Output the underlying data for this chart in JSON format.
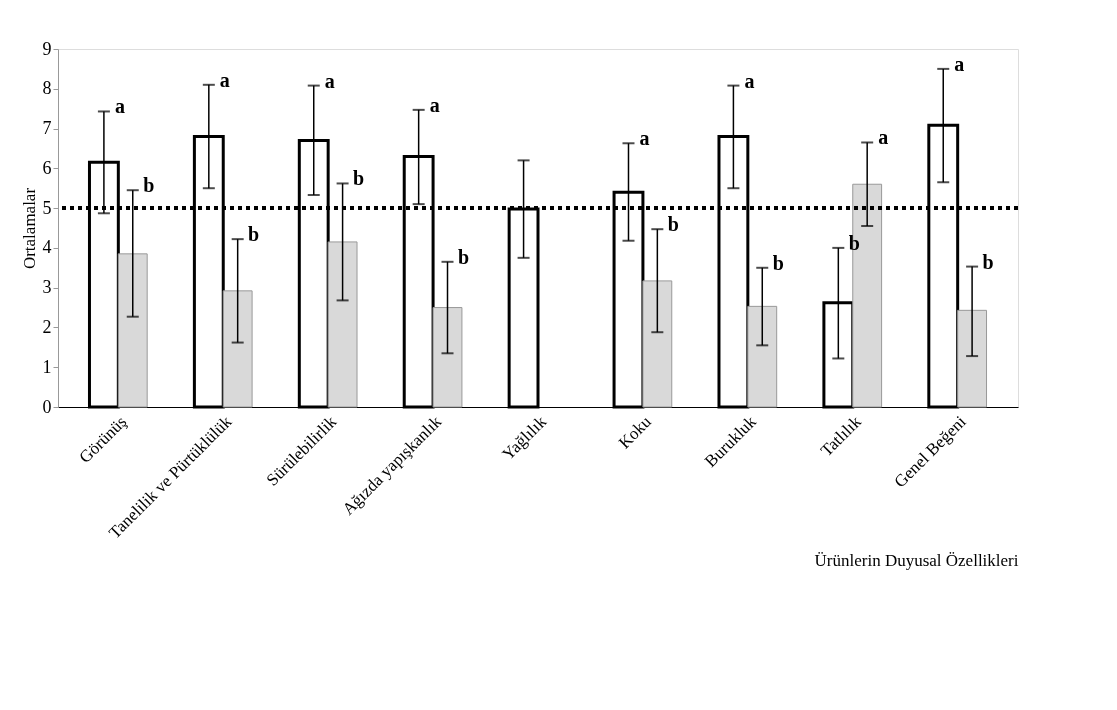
{
  "chart_data": {
    "type": "bar",
    "xlabel": "Ürünlerin Duyusal Özellikleri",
    "ylabel": "Ortalamalar",
    "categories": [
      "Görünüş",
      "Tanelilik ve Pürtüklülük",
      "Sürülebilirlik",
      "Ağızda yapışkanlık",
      "Yağlılık",
      "Koku",
      "Burukluk",
      "Tatlılık",
      "Genel Beğeni"
    ],
    "series": [
      {
        "color": "#ffffff",
        "values": [
          6.15,
          6.8,
          6.7,
          6.3,
          4.98,
          5.4,
          6.8,
          2.62,
          7.08
        ],
        "errors": [
          [
            4.87,
            7.43
          ],
          [
            5.5,
            8.1
          ],
          [
            5.33,
            8.08
          ],
          [
            5.1,
            7.47
          ],
          [
            3.75,
            6.2
          ],
          [
            4.18,
            6.63
          ],
          [
            5.5,
            8.08
          ],
          [
            1.22,
            4.0
          ],
          [
            5.65,
            8.5
          ]
        ],
        "value_labels": [
          "a",
          "a",
          "a",
          "a",
          null,
          "a",
          "a",
          "b",
          "a"
        ]
      },
      {
        "color": "#d9d9d9",
        "values": [
          3.85,
          2.92,
          4.15,
          2.5,
          null,
          3.17,
          2.53,
          5.6,
          2.43
        ],
        "errors": [
          [
            2.27,
            5.45
          ],
          [
            1.62,
            4.22
          ],
          [
            2.68,
            5.62
          ],
          [
            1.35,
            3.65
          ],
          null,
          [
            1.88,
            4.47
          ],
          [
            1.55,
            3.5
          ],
          [
            4.55,
            6.65
          ],
          [
            1.28,
            3.53
          ]
        ],
        "value_labels": [
          "b",
          "b",
          "b",
          "b",
          null,
          "b",
          "b",
          "a",
          "b"
        ]
      }
    ],
    "ylim": [
      0,
      9
    ],
    "yticks": [
      0,
      1,
      2,
      3,
      4,
      5,
      6,
      7,
      8,
      9
    ],
    "grid": false,
    "legend": false,
    "ref_lines": [
      {
        "axis": "y",
        "value": 5,
        "line_style": "dotted",
        "color": "#000000"
      }
    ]
  }
}
